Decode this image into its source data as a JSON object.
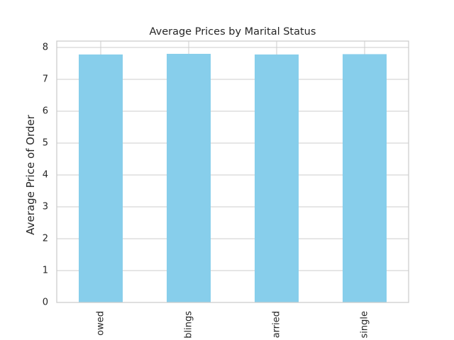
{
  "chart_data": {
    "type": "bar",
    "title": "Average Prices by Marital Status",
    "xlabel": "",
    "ylabel": "Average Price of Order",
    "categories": [
      "owed",
      "blings",
      "arried",
      "single"
    ],
    "values": [
      7.78,
      7.8,
      7.78,
      7.79
    ],
    "ylim": [
      0,
      8.2
    ],
    "yticks": [
      0,
      1,
      2,
      3,
      4,
      5,
      6,
      7,
      8
    ],
    "grid": true,
    "legend": "none",
    "colors": {
      "bar": "#87ceeb",
      "grid": "#cccccc",
      "axes": "#cccccc",
      "text": "#262626",
      "background": "#ffffff"
    }
  }
}
